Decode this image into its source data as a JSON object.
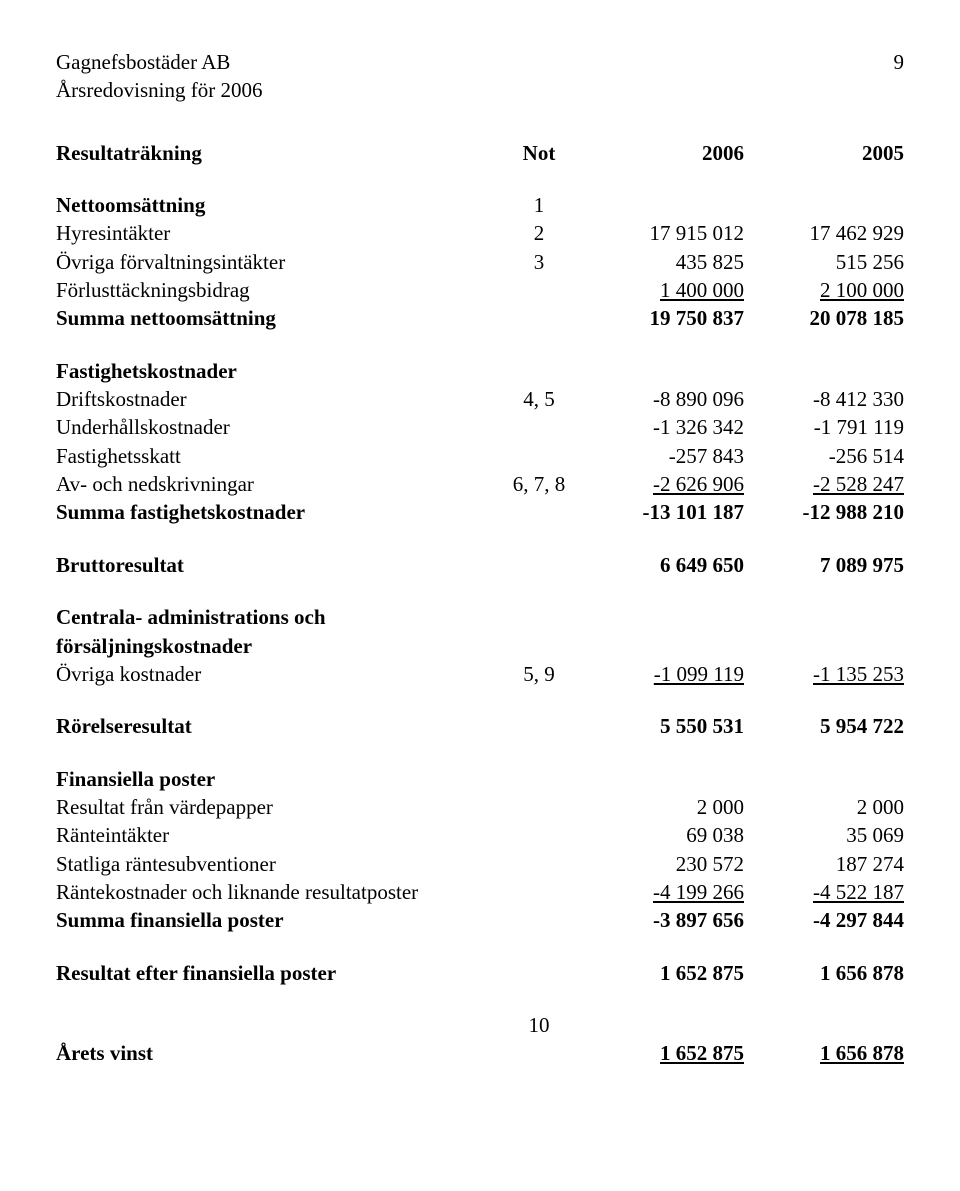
{
  "header": {
    "company": "Gagnefsbostäder AB",
    "subtitle": "Årsredovisning för 2006",
    "page_number": "9"
  },
  "columns": {
    "not": "Not",
    "y2006": "2006",
    "y2005": "2005"
  },
  "sections": {
    "resultatrakning": "Resultaträkning",
    "nettoomsattning": "Nettoomsättning",
    "hyresintakter": {
      "label": "Hyresintäkter",
      "not": "2",
      "v2006": "17 915 012",
      "v2005": "17 462 929"
    },
    "ovriga_forv": {
      "label": "Övriga förvaltningsintäkter",
      "not": "3",
      "v2006": "435 825",
      "v2005": "515 256"
    },
    "forlust": {
      "label": "Förlusttäckningsbidrag",
      "not": "",
      "v2006": "1 400 000",
      "v2005": "2 100 000"
    },
    "summa_netto": {
      "label": "Summa nettoomsättning",
      "not": "",
      "v2006": "19 750 837",
      "v2005": "20 078 185"
    },
    "fastighetskostnader": "Fastighetskostnader",
    "drifts": {
      "label": "Driftskostnader",
      "not": "4, 5",
      "v2006": "-8 890 096",
      "v2005": "-8 412 330"
    },
    "underhall": {
      "label": "Underhållskostnader",
      "not": "",
      "v2006": "-1 326 342",
      "v2005": "-1 791 119"
    },
    "fastskatt": {
      "label": "Fastighetsskatt",
      "not": "",
      "v2006": "-257 843",
      "v2005": "-256 514"
    },
    "avned": {
      "label": "Av- och nedskrivningar",
      "not": "6, 7, 8",
      "v2006": "-2 626 906",
      "v2005": "-2 528 247"
    },
    "summa_fast": {
      "label": "Summa fastighetskostnader",
      "not": "",
      "v2006": "-13 101 187",
      "v2005": "-12 988 210"
    },
    "brutto": {
      "label": "Bruttoresultat",
      "not": "",
      "v2006": "6 649 650",
      "v2005": "7 089 975"
    },
    "centrala_h1": "Centrala- administrations och",
    "centrala_h2": "försäljningskostnader",
    "ovriga_kost": {
      "label": "Övriga kostnader",
      "not": "5, 9",
      "v2006": "-1 099 119",
      "v2005": "-1 135 253"
    },
    "rorelse": {
      "label": "Rörelseresultat",
      "not": "",
      "v2006": "5 550 531",
      "v2005": "5 954 722"
    },
    "finansiella": "Finansiella poster",
    "res_varde": {
      "label": "Resultat från värdepapper",
      "not": "",
      "v2006": "2 000",
      "v2005": "2 000"
    },
    "ranteint": {
      "label": "Ränteintäkter",
      "not": "",
      "v2006": "69 038",
      "v2005": "35 069"
    },
    "statliga": {
      "label": "Statliga räntesubventioner",
      "not": "",
      "v2006": "230 572",
      "v2005": "187 274"
    },
    "rantekost": {
      "label": "Räntekostnader och liknande resultatposter",
      "not": "",
      "v2006": "-4 199 266",
      "v2005": "-4 522 187"
    },
    "summa_fin": {
      "label": "Summa finansiella poster",
      "not": "",
      "v2006": "-3 897 656",
      "v2005": "-4 297 844"
    },
    "res_efter": {
      "label": "Resultat efter finansiella poster",
      "not": "",
      "v2006": "1 652 875",
      "v2005": "1 656 878"
    },
    "note10": "10",
    "arets": {
      "label": "Årets vinst",
      "not": "",
      "v2006": "1 652 875",
      "v2005": "1 656 878"
    }
  },
  "net_not": "1"
}
